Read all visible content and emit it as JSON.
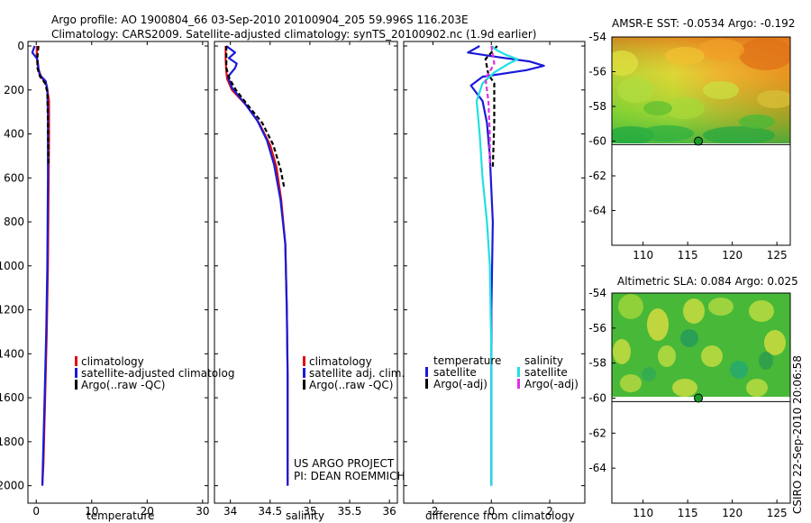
{
  "header": {
    "title_line1": "Argo profile: AO 1900804_66 03-Sep-2010 20100904_205 59.996S 116.203E",
    "title_line2": "Climatology: CARS2009. Satellite-adjusted climatology: synTS_20100902.nc (1.9d earlier)"
  },
  "credit": "CSIRO 22-Sep-2010 20:06:58",
  "colors": {
    "clim": "#e01010",
    "sat": "#1a1ad8",
    "argo": "#000000",
    "sat_sal": "#20e0e0",
    "argo_sal": "#e030e0"
  },
  "chart_data": [
    {
      "type": "line",
      "id": "temperature",
      "xlabel": "temperature",
      "xlim": [
        -1.5,
        31
      ],
      "ylim": [
        0,
        2100
      ],
      "y_reversed": true,
      "xticks": [
        0,
        10,
        20,
        30
      ],
      "xtick_labels": [
        "0",
        "10",
        "20",
        "30"
      ],
      "yticks": [
        0,
        200,
        400,
        600,
        800,
        1000,
        1200,
        1400,
        1600,
        1800,
        2000
      ],
      "ytick_labels": [
        "0",
        "200",
        "400",
        "600",
        "800",
        "1000",
        "1200",
        "1400",
        "1600",
        "1800",
        "2000"
      ],
      "legend": [
        "climatology",
        "satellite-adjusted climatolog",
        "Argo(..raw -QC)"
      ],
      "series": [
        {
          "name": "climatology",
          "color": "clim",
          "dash": "",
          "x": [
            0.1,
            0.1,
            0.3,
            0.9,
            1.9,
            2.3,
            2.3,
            2.2,
            2.1,
            1.9,
            1.6,
            1.3,
            1.1
          ],
          "y": [
            0,
            50,
            100,
            140,
            180,
            250,
            400,
            700,
            1000,
            1300,
            1600,
            1900,
            2000
          ]
        },
        {
          "name": "satellite-adjusted climatology",
          "color": "sat",
          "dash": "",
          "x": [
            -0.3,
            -0.7,
            0.2,
            0.4,
            0.6,
            1.7,
            2.0,
            2.1,
            2.1,
            2.0,
            1.8,
            1.5,
            1.2,
            1.1
          ],
          "y": [
            0,
            30,
            60,
            100,
            130,
            160,
            200,
            300,
            600,
            1000,
            1300,
            1600,
            1900,
            2000
          ]
        },
        {
          "name": "Argo(..raw -QC)",
          "color": "argo",
          "dash": "5,3",
          "x": [
            0.4,
            0.2,
            0.2,
            0.7,
            1.6,
            2.0,
            2.1,
            2.2
          ],
          "y": [
            0,
            50,
            100,
            140,
            170,
            210,
            350,
            540
          ]
        }
      ]
    },
    {
      "type": "line",
      "id": "salinity",
      "xlabel": "salinity",
      "xlim": [
        33.8,
        36.1
      ],
      "ylim": [
        0,
        2100
      ],
      "y_reversed": true,
      "xticks": [
        34,
        34.5,
        35,
        35.5,
        36
      ],
      "xtick_labels": [
        "34",
        "34.5",
        "35",
        "35.5",
        "36"
      ],
      "legend": [
        "climatology",
        "satellite adj. clim.",
        "Argo(..raw -QC)"
      ],
      "annotation": [
        "US ARGO PROJECT",
        "PI: DEAN ROEMMICH"
      ],
      "series": [
        {
          "name": "climatology",
          "color": "clim",
          "dash": "",
          "x": [
            33.94,
            33.94,
            33.95,
            33.96,
            34.02,
            34.2,
            34.36,
            34.5,
            34.58,
            34.64,
            34.69,
            34.71,
            34.72,
            34.72,
            34.72
          ],
          "y": [
            0,
            60,
            120,
            150,
            200,
            270,
            350,
            450,
            550,
            700,
            900,
            1200,
            1500,
            1800,
            2000
          ]
        },
        {
          "name": "satellite adj. clim.",
          "color": "sat",
          "dash": "",
          "x": [
            33.95,
            34.06,
            33.98,
            34.08,
            34.06,
            33.97,
            34.02,
            34.18,
            34.34,
            34.46,
            34.55,
            34.63,
            34.69,
            34.71,
            34.72,
            34.72,
            34.72
          ],
          "y": [
            0,
            30,
            55,
            80,
            100,
            140,
            190,
            260,
            340,
            430,
            540,
            700,
            900,
            1200,
            1500,
            1800,
            2000
          ]
        },
        {
          "name": "Argo(..raw -QC)",
          "color": "argo",
          "dash": "5,3",
          "x": [
            33.95,
            33.95,
            33.99,
            34.07,
            34.22,
            34.4,
            34.54,
            34.63,
            34.68
          ],
          "y": [
            0,
            100,
            150,
            200,
            270,
            350,
            450,
            560,
            650
          ]
        }
      ]
    },
    {
      "type": "line",
      "id": "difference",
      "xlabel": "difference from climatology",
      "xlim": [
        -3,
        3.2
      ],
      "ylim": [
        0,
        2100
      ],
      "y_reversed": true,
      "xticks": [
        -2,
        0,
        2
      ],
      "xtick_labels": [
        "-2",
        "0",
        "2"
      ],
      "legend_headers": [
        "temperature",
        "salinity"
      ],
      "legend": [
        "satellite",
        "Argo(-adj)",
        "satellite",
        "Argo(-adj)"
      ],
      "series": [
        {
          "name": "temperature satellite",
          "color": "sat",
          "dash": "",
          "x": [
            -0.4,
            -0.8,
            0.2,
            1.3,
            1.8,
            1.2,
            -0.3,
            -0.7,
            -0.3,
            -0.15,
            -0.05,
            0.05,
            0.0,
            0.0
          ],
          "y": [
            0,
            30,
            50,
            70,
            90,
            110,
            140,
            180,
            250,
            350,
            500,
            800,
            1200,
            2000
          ]
        },
        {
          "name": "temperature Argo(-adj)",
          "color": "argo",
          "dash": "5,3",
          "x": [
            0.2,
            -0.2,
            -0.1,
            0.1,
            0.1,
            0.1,
            0.05
          ],
          "y": [
            0,
            60,
            130,
            170,
            250,
            350,
            550
          ]
        },
        {
          "name": "salinity satellite",
          "color": "sat_sal",
          "dash": "",
          "x": [
            0.0,
            0.2,
            0.5,
            0.9,
            0.6,
            0.1,
            -0.3,
            -0.5,
            -0.4,
            -0.3,
            -0.15,
            -0.05,
            0.0,
            0.0
          ],
          "y": [
            0,
            20,
            40,
            60,
            80,
            120,
            170,
            250,
            400,
            600,
            800,
            1000,
            1400,
            2000
          ]
        },
        {
          "name": "salinity Argo(-adj)",
          "color": "argo_sal",
          "dash": "5,3",
          "x": [
            0.0,
            0.1,
            -0.2,
            -0.1,
            -0.05,
            -0.05
          ],
          "y": [
            0,
            80,
            150,
            250,
            400,
            550
          ]
        }
      ]
    },
    {
      "type": "heatmap",
      "id": "sst_map",
      "title": "AMSR-E SST: -0.0534 Argo: -0.192",
      "xlim": [
        106.5,
        126.5
      ],
      "ylim": [
        -66,
        -54
      ],
      "xticks": [
        110,
        115,
        120,
        125
      ],
      "yticks": [
        -54,
        -56,
        -58,
        -60,
        -62,
        -64
      ],
      "data_lat_range": [
        -54,
        -60.2
      ],
      "marker": {
        "lon": 116.2,
        "lat": -60.0
      }
    },
    {
      "type": "heatmap",
      "id": "sla_map",
      "title": "Altimetric SLA: 0.084 Argo: 0.025",
      "xlim": [
        106.5,
        126.5
      ],
      "ylim": [
        -66,
        -54
      ],
      "xticks": [
        110,
        115,
        120,
        125
      ],
      "yticks": [
        -54,
        -56,
        -58,
        -60,
        -62,
        -64
      ],
      "data_lat_range": [
        -54,
        -60.2
      ],
      "marker": {
        "lon": 116.2,
        "lat": -60.0
      }
    }
  ]
}
